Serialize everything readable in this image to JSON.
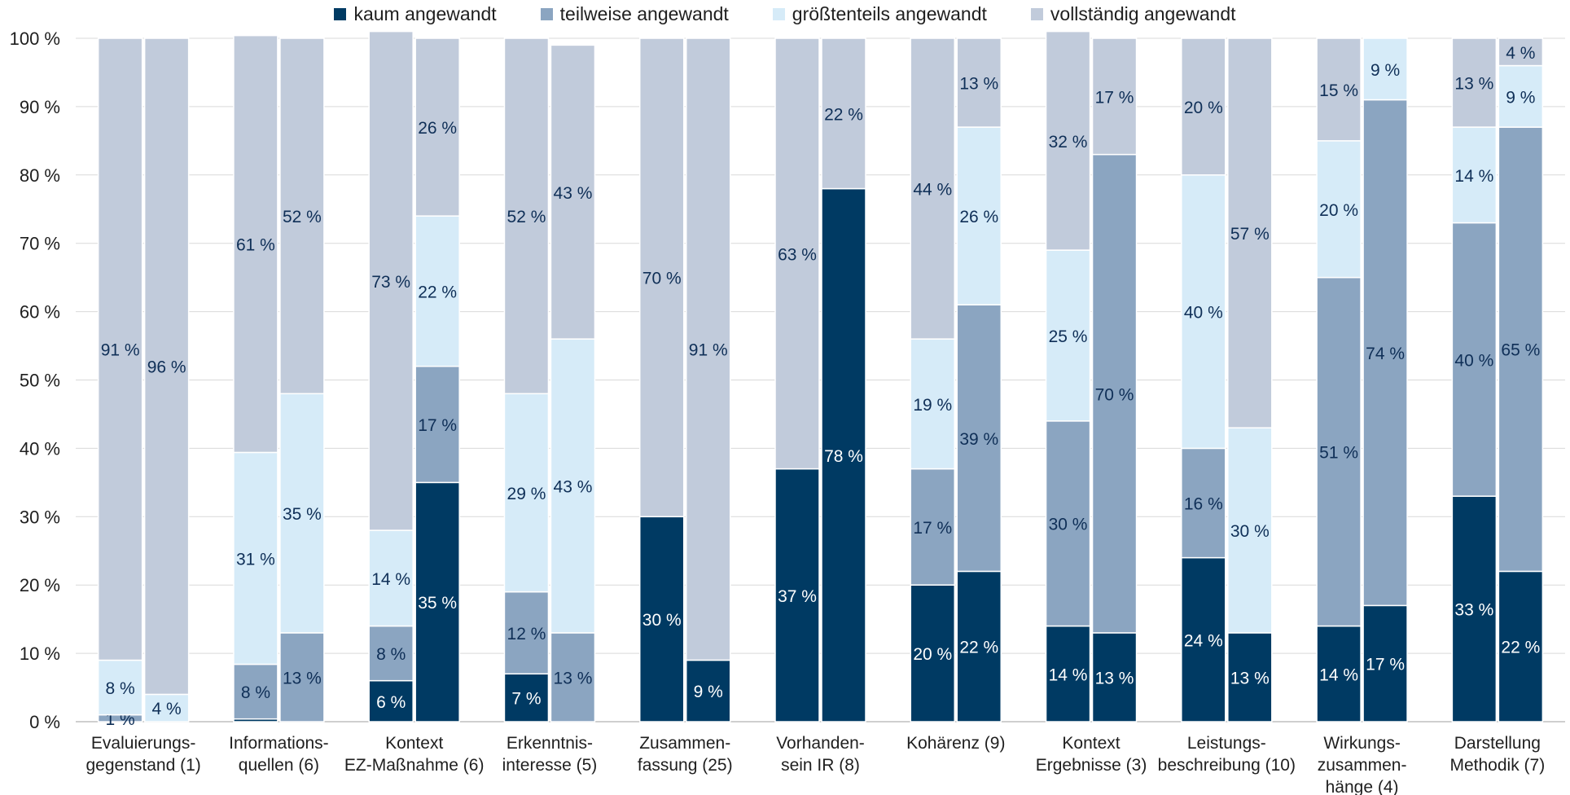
{
  "chart_data": {
    "type": "bar",
    "stacked": true,
    "percent": true,
    "ylim": [
      0,
      100
    ],
    "yticks": [
      0,
      10,
      20,
      30,
      40,
      50,
      60,
      70,
      80,
      90,
      100
    ],
    "ytick_labels": [
      "0 %",
      "10 %",
      "20 %",
      "30 %",
      "40 %",
      "50 %",
      "60 %",
      "70 %",
      "80 %",
      "90 %",
      "100 %"
    ],
    "grid": true,
    "legend_position": "top",
    "series": [
      {
        "name": "kaum angewandt",
        "color": "#003a63"
      },
      {
        "name": "teilweise angewandt",
        "color": "#8ba5c1"
      },
      {
        "name": "größtenteils angewandt",
        "color": "#d6ebf8"
      },
      {
        "name": "vollständig angewandt",
        "color": "#c1cbdb"
      }
    ],
    "groups": [
      {
        "label": [
          "Evaluierungs-",
          "gegenstand (1)"
        ],
        "bars": [
          {
            "values": [
              0,
              1,
              8,
              91
            ],
            "labels": [
              "",
              "1 %",
              "8 %",
              "91 %"
            ]
          },
          {
            "values": [
              0,
              0,
              4,
              96
            ],
            "labels": [
              "",
              "",
              "4 %",
              "96 %"
            ]
          }
        ]
      },
      {
        "label": [
          "Informations-",
          "quellen (6)"
        ],
        "bars": [
          {
            "values": [
              0.4,
              8,
              31,
              61
            ],
            "labels": [
              "",
              "8 %",
              "31 %",
              "61 %"
            ]
          },
          {
            "values": [
              0,
              13,
              35,
              52
            ],
            "labels": [
              "",
              "13 %",
              "35 %",
              "52 %"
            ]
          }
        ]
      },
      {
        "label": [
          "Kontext",
          "EZ-Maßnahme (6)"
        ],
        "bars": [
          {
            "values": [
              6,
              8,
              14,
              73
            ],
            "labels": [
              "6 %",
              "8 %",
              "14 %",
              "73 %"
            ]
          },
          {
            "values": [
              35,
              17,
              22,
              26
            ],
            "labels": [
              "35 %",
              "17 %",
              "22 %",
              "26 %"
            ]
          }
        ]
      },
      {
        "label": [
          "Erkenntnis-",
          "interesse (5)"
        ],
        "bars": [
          {
            "values": [
              7,
              12,
              29,
              52
            ],
            "labels": [
              "7 %",
              "12 %",
              "29 %",
              "52 %"
            ]
          },
          {
            "values": [
              0,
              13,
              43,
              43
            ],
            "labels": [
              "",
              "13 %",
              "43 %",
              "43 %"
            ]
          }
        ]
      },
      {
        "label": [
          "Zusammen-",
          "fassung (25)"
        ],
        "bars": [
          {
            "values": [
              30,
              0,
              0,
              70
            ],
            "labels": [
              "30 %",
              "",
              "",
              "70 %"
            ]
          },
          {
            "values": [
              9,
              0,
              0,
              91
            ],
            "labels": [
              "9 %",
              "",
              "",
              "91 %"
            ]
          }
        ]
      },
      {
        "label": [
          "Vorhanden-",
          "sein IR (8)"
        ],
        "bars": [
          {
            "values": [
              37,
              0,
              0,
              63
            ],
            "labels": [
              "37 %",
              "",
              "",
              "63 %"
            ]
          },
          {
            "values": [
              78,
              0,
              0,
              22
            ],
            "labels": [
              "78 %",
              "",
              "",
              "22 %"
            ]
          }
        ]
      },
      {
        "label": [
          "Kohärenz (9)"
        ],
        "bars": [
          {
            "values": [
              20,
              17,
              19,
              44
            ],
            "labels": [
              "20 %",
              "17 %",
              "19 %",
              "44 %"
            ]
          },
          {
            "values": [
              22,
              39,
              26,
              13
            ],
            "labels": [
              "22 %",
              "39 %",
              "26 %",
              "13 %"
            ]
          }
        ]
      },
      {
        "label": [
          "Kontext",
          "Ergebnisse (3)"
        ],
        "bars": [
          {
            "values": [
              14,
              30,
              25,
              32
            ],
            "labels": [
              "14 %",
              "30 %",
              "25 %",
              "32 %"
            ]
          },
          {
            "values": [
              13,
              70,
              0,
              17
            ],
            "labels": [
              "13 %",
              "70 %",
              "",
              "17 %"
            ]
          }
        ]
      },
      {
        "label": [
          "Leistungs-",
          "beschreibung (10)"
        ],
        "bars": [
          {
            "values": [
              24,
              16,
              40,
              20
            ],
            "labels": [
              "24 %",
              "16 %",
              "40 %",
              "20 %"
            ]
          },
          {
            "values": [
              13,
              0,
              30,
              57
            ],
            "labels": [
              "13 %",
              "",
              "30 %",
              "57 %"
            ]
          }
        ]
      },
      {
        "label": [
          "Wirkungs-",
          "zusammen-",
          "hänge (4)"
        ],
        "bars": [
          {
            "values": [
              14,
              51,
              20,
              15
            ],
            "labels": [
              "14 %",
              "51 %",
              "20 %",
              "15 %"
            ]
          },
          {
            "values": [
              17,
              74,
              9,
              0
            ],
            "labels": [
              "17 %",
              "74 %",
              "9 %",
              ""
            ]
          }
        ]
      },
      {
        "label": [
          "Darstellung",
          "Methodik (7)"
        ],
        "bars": [
          {
            "values": [
              33,
              40,
              14,
              13
            ],
            "labels": [
              "33 %",
              "40 %",
              "14 %",
              "13 %"
            ]
          },
          {
            "values": [
              22,
              65,
              9,
              4
            ],
            "labels": [
              "22 %",
              "65 %",
              "9 %",
              "4 %"
            ]
          }
        ]
      }
    ]
  }
}
